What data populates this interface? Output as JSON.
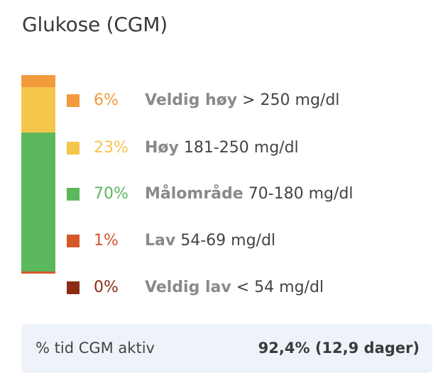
{
  "title": "Glukose (CGM)",
  "colors": {
    "veldig_hoy": "#f39a3c",
    "hoy": "#f5c64c",
    "malomrade": "#5cb85c",
    "lav": "#d4572a",
    "veldig_lav": "#8b2c14"
  },
  "ranges": [
    {
      "key": "veldig_hoy",
      "percent_label": "6%",
      "percent": 6,
      "name": "Veldig høy",
      "range": "> 250 mg/dl",
      "color": "#f39a3c"
    },
    {
      "key": "hoy",
      "percent_label": "23%",
      "percent": 23,
      "name": "Høy",
      "range": "181-250 mg/dl",
      "color": "#f5c64c"
    },
    {
      "key": "malomrade",
      "percent_label": "70%",
      "percent": 70,
      "name": "Målområde",
      "range": "70-180 mg/dl",
      "color": "#5cb85c"
    },
    {
      "key": "lav",
      "percent_label": "1%",
      "percent": 1,
      "name": "Lav",
      "range": "54-69 mg/dl",
      "color": "#d4572a"
    },
    {
      "key": "veldig_lav",
      "percent_label": "0%",
      "percent": 0,
      "name": "Veldig lav",
      "range": "< 54 mg/dl",
      "color": "#8b2c14"
    }
  ],
  "footer": {
    "label": "% tid CGM aktiv",
    "value": "92,4% (12,9 dager)"
  }
}
